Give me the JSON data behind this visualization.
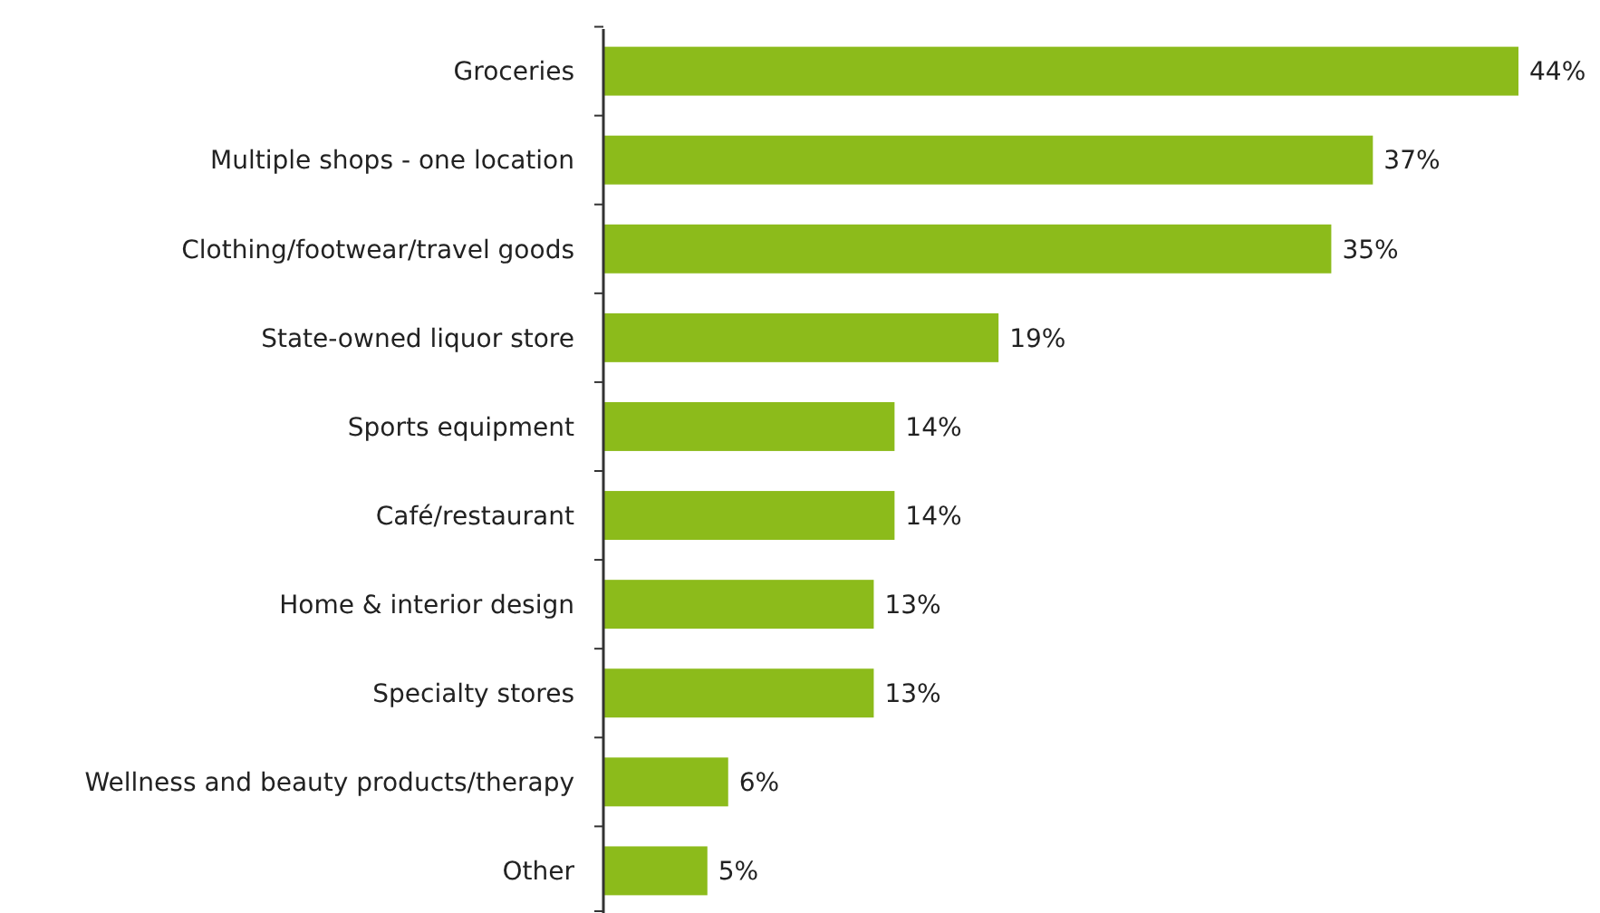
{
  "chart_data": {
    "type": "bar",
    "orientation": "horizontal",
    "categories": [
      "Groceries",
      "Multiple shops - one location",
      "Clothing/footwear/travel goods",
      "State-owned liquor store",
      "Sports equipment",
      "Café/restaurant",
      "Home & interior design",
      "Specialty stores",
      "Wellness and beauty products/therapy",
      "Other"
    ],
    "values": [
      44,
      37,
      35,
      19,
      14,
      14,
      13,
      13,
      6,
      5
    ],
    "value_labels": [
      "44%",
      "37%",
      "35%",
      "19%",
      "14%",
      "14%",
      "13%",
      "13%",
      "6%",
      "5%"
    ],
    "color": "#8cbb1b"
  }
}
